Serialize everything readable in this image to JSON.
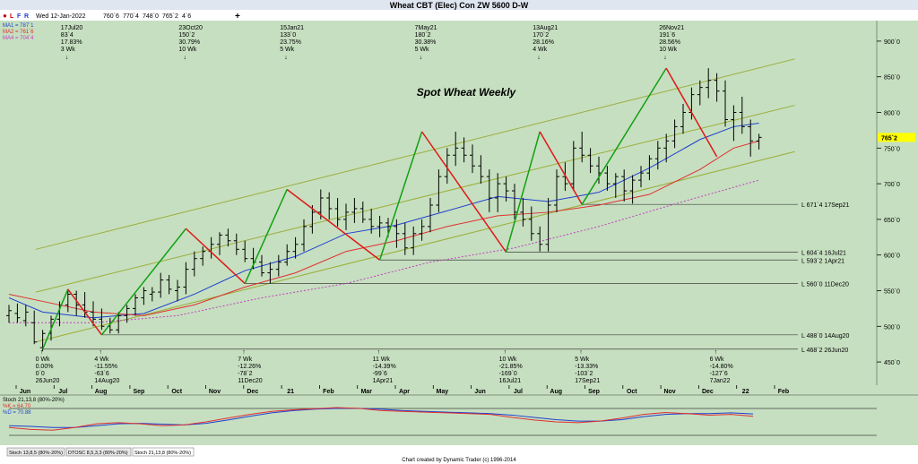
{
  "window_title": "Wheat CBT (Elec) Con ZW 5600 D-W",
  "toolbar": {
    "buttons": [
      "L",
      "F",
      "R"
    ],
    "date": "Wed 12-Jan-2022",
    "ohlc": [
      "760`6",
      "770`4",
      "748`0",
      "765`2",
      "4`6"
    ],
    "plus": "+"
  },
  "ma_legend": [
    {
      "label": "MA1 = 787`1",
      "color": "#1f3fd0"
    },
    {
      "label": "MA2 = 761`6",
      "color": "#e03030"
    },
    {
      "label": "MA4 = 704`4",
      "color": "#c040c0"
    }
  ],
  "colors": {
    "panel_bg": "#c6dfc0",
    "up_leg": "#12a012",
    "down_leg": "#e01818",
    "channel": "#9aae3a",
    "ma1": "#1f3fd0",
    "ma2": "#e03030",
    "ma4": "#c040c0",
    "price_tag_bg": "#ffff00"
  },
  "chart_data": {
    "type": "ohlc",
    "title": "Spot Wheat Weekly",
    "ylim": [
      430,
      920
    ],
    "yticks": [
      "900`0",
      "850`0",
      "800`0",
      "750`0",
      "700`0",
      "650`0",
      "600`0",
      "550`0",
      "500`0",
      "450`0"
    ],
    "ytick_values": [
      900,
      850,
      800,
      750,
      700,
      650,
      600,
      550,
      500,
      450
    ],
    "x_months": [
      "Jun",
      "Jul",
      "Aug",
      "Sep",
      "Oct",
      "Nov",
      "Dec",
      "21",
      "Feb",
      "Mar",
      "Apr",
      "May",
      "Jun",
      "Jul",
      "Aug",
      "Sep",
      "Oct",
      "Nov",
      "Dec",
      "22",
      "Feb"
    ],
    "last_price": "765`2",
    "bars": [
      [
        0,
        515,
        530,
        505,
        522
      ],
      [
        1,
        518,
        532,
        505,
        512
      ],
      [
        2,
        508,
        530,
        500,
        520
      ],
      [
        3,
        505,
        522,
        475,
        478
      ],
      [
        4,
        470,
        495,
        465,
        490
      ],
      [
        5,
        490,
        515,
        480,
        510
      ],
      [
        6,
        510,
        535,
        500,
        530
      ],
      [
        7,
        530,
        552,
        520,
        545
      ],
      [
        8,
        545,
        550,
        515,
        530
      ],
      [
        9,
        530,
        548,
        512,
        520
      ],
      [
        10,
        520,
        535,
        500,
        510
      ],
      [
        11,
        510,
        525,
        495,
        500
      ],
      [
        12,
        500,
        512,
        490,
        495
      ],
      [
        13,
        495,
        520,
        490,
        515
      ],
      [
        14,
        515,
        530,
        505,
        525
      ],
      [
        15,
        525,
        545,
        515,
        540
      ],
      [
        16,
        540,
        555,
        530,
        550
      ],
      [
        17,
        545,
        555,
        535,
        548
      ],
      [
        18,
        548,
        575,
        540,
        565
      ],
      [
        19,
        565,
        572,
        545,
        552
      ],
      [
        20,
        550,
        565,
        535,
        555
      ],
      [
        21,
        555,
        590,
        545,
        580
      ],
      [
        22,
        580,
        605,
        570,
        595
      ],
      [
        23,
        595,
        612,
        585,
        605
      ],
      [
        24,
        605,
        625,
        595,
        615
      ],
      [
        25,
        615,
        632,
        600,
        628
      ],
      [
        26,
        628,
        637,
        612,
        620
      ],
      [
        27,
        620,
        630,
        600,
        608
      ],
      [
        28,
        608,
        620,
        590,
        595
      ],
      [
        29,
        595,
        610,
        580,
        590
      ],
      [
        30,
        590,
        600,
        570,
        575
      ],
      [
        31,
        575,
        590,
        560,
        580
      ],
      [
        32,
        580,
        600,
        570,
        590
      ],
      [
        33,
        590,
        615,
        585,
        605
      ],
      [
        34,
        605,
        625,
        595,
        615
      ],
      [
        35,
        615,
        650,
        605,
        640
      ],
      [
        36,
        640,
        670,
        630,
        660
      ],
      [
        37,
        660,
        692,
        650,
        680
      ],
      [
        38,
        680,
        688,
        650,
        665
      ],
      [
        39,
        665,
        680,
        640,
        650
      ],
      [
        40,
        650,
        672,
        635,
        660
      ],
      [
        41,
        660,
        680,
        645,
        665
      ],
      [
        42,
        665,
        675,
        645,
        650
      ],
      [
        43,
        650,
        665,
        630,
        640
      ],
      [
        44,
        640,
        655,
        625,
        645
      ],
      [
        45,
        645,
        652,
        625,
        640
      ],
      [
        46,
        640,
        650,
        610,
        630
      ],
      [
        47,
        630,
        645,
        600,
        610
      ],
      [
        48,
        610,
        640,
        600,
        630
      ],
      [
        49,
        630,
        650,
        620,
        640
      ],
      [
        50,
        640,
        680,
        632,
        670
      ],
      [
        51,
        670,
        720,
        660,
        710
      ],
      [
        52,
        710,
        750,
        700,
        740
      ],
      [
        53,
        740,
        773,
        725,
        750
      ],
      [
        54,
        750,
        765,
        730,
        740
      ],
      [
        55,
        740,
        755,
        715,
        725
      ],
      [
        56,
        725,
        740,
        700,
        710
      ],
      [
        57,
        710,
        720,
        660,
        680
      ],
      [
        58,
        680,
        715,
        660,
        700
      ],
      [
        59,
        700,
        710,
        675,
        690
      ],
      [
        60,
        690,
        700,
        650,
        660
      ],
      [
        61,
        660,
        680,
        640,
        650
      ],
      [
        62,
        650,
        668,
        620,
        630
      ],
      [
        63,
        630,
        640,
        605,
        615
      ],
      [
        64,
        615,
        680,
        605,
        670
      ],
      [
        65,
        670,
        720,
        660,
        710
      ],
      [
        66,
        710,
        730,
        690,
        700
      ],
      [
        67,
        700,
        760,
        690,
        750
      ],
      [
        68,
        750,
        773,
        730,
        740
      ],
      [
        69,
        740,
        750,
        715,
        725
      ],
      [
        70,
        725,
        738,
        700,
        715
      ],
      [
        71,
        715,
        725,
        690,
        700
      ],
      [
        72,
        700,
        715,
        680,
        710
      ],
      [
        73,
        710,
        720,
        675,
        690
      ],
      [
        74,
        690,
        712,
        672,
        705
      ],
      [
        75,
        705,
        725,
        695,
        715
      ],
      [
        76,
        715,
        740,
        705,
        735
      ],
      [
        77,
        735,
        760,
        720,
        750
      ],
      [
        78,
        750,
        770,
        730,
        760
      ],
      [
        79,
        760,
        790,
        750,
        780
      ],
      [
        80,
        780,
        812,
        770,
        800
      ],
      [
        81,
        800,
        835,
        790,
        825
      ],
      [
        82,
        825,
        845,
        810,
        835
      ],
      [
        83,
        835,
        862,
        820,
        845
      ],
      [
        84,
        845,
        855,
        815,
        830
      ],
      [
        85,
        830,
        845,
        780,
        790
      ],
      [
        86,
        790,
        810,
        760,
        800
      ],
      [
        87,
        800,
        822,
        770,
        780
      ],
      [
        88,
        780,
        790,
        738,
        760
      ],
      [
        89,
        760,
        770,
        748,
        765
      ]
    ],
    "swings": [
      {
        "type": "low",
        "bar": 4,
        "price": 468,
        "lines": [
          "0 Wk",
          "0.00%",
          "0`0",
          "26Jun20"
        ]
      },
      {
        "type": "high",
        "bar": 7,
        "price": 552,
        "lines": [
          "17Jul20",
          "83`4",
          "17.83%",
          "3 Wk"
        ]
      },
      {
        "type": "low",
        "bar": 11,
        "price": 488,
        "lines": [
          "4 Wk",
          "-11.55%",
          "-63`6",
          "14Aug20"
        ]
      },
      {
        "type": "high",
        "bar": 21,
        "price": 637,
        "lines": [
          "23Oct20",
          "150`2",
          "30.79%",
          "10 Wk"
        ]
      },
      {
        "type": "low",
        "bar": 28,
        "price": 560,
        "lines": [
          "7 Wk",
          "-12.26%",
          "-78`2",
          "11Dec20"
        ]
      },
      {
        "type": "high",
        "bar": 33,
        "price": 692,
        "lines": [
          "15Jan21",
          "133`0",
          "23.75%",
          "5 Wk"
        ]
      },
      {
        "type": "low",
        "bar": 44,
        "price": 593,
        "lines": [
          "11 Wk",
          "-14.39%",
          "-99`6",
          "1Apr21"
        ]
      },
      {
        "type": "high",
        "bar": 49,
        "price": 773,
        "lines": [
          "7May21",
          "180`2",
          "30.38%",
          "5 Wk"
        ]
      },
      {
        "type": "low",
        "bar": 59,
        "price": 604,
        "lines": [
          "10 Wk",
          "-21.85%",
          "-169`0",
          "16Jul21"
        ]
      },
      {
        "type": "high",
        "bar": 63,
        "price": 773,
        "lines": [
          "13Aug21",
          "170`2",
          "28.16%",
          "4 Wk"
        ]
      },
      {
        "type": "low",
        "bar": 68,
        "price": 671,
        "lines": [
          "5 Wk",
          "-13.33%",
          "-103`2",
          "17Sep21"
        ]
      },
      {
        "type": "high",
        "bar": 78,
        "price": 862,
        "lines": [
          "26Nov21",
          "191`6",
          "28.56%",
          "10 Wk"
        ]
      },
      {
        "type": "low",
        "bar": 84,
        "price": 738,
        "lines": [
          "6 Wk",
          "-14.80%",
          "-127`6",
          "7Jan22"
        ]
      }
    ],
    "levels": [
      {
        "price": 671,
        "label": "L 671`4 17Sep21"
      },
      {
        "price": 604,
        "label": "L 604`4 16Jul21"
      },
      {
        "price": 593,
        "label": "L 593`2 1Apr21"
      },
      {
        "price": 560,
        "label": "L 560`0 11Dec20"
      },
      {
        "price": 488,
        "label": "L 488`0 14Aug20"
      },
      {
        "price": 468,
        "label": "L 468`2 26Jun20"
      }
    ],
    "channel": [
      {
        "from": [
          0,
          590
        ],
        "to": [
          89,
          875
        ]
      },
      {
        "from": [
          0,
          530
        ],
        "to": [
          89,
          810
        ]
      },
      {
        "from": [
          0,
          460
        ],
        "to": [
          89,
          745
        ]
      }
    ],
    "moving_averages": [
      {
        "name": "MA1",
        "values": [
          [
            0,
            540
          ],
          [
            4,
            520
          ],
          [
            10,
            512
          ],
          [
            16,
            518
          ],
          [
            22,
            545
          ],
          [
            28,
            578
          ],
          [
            34,
            598
          ],
          [
            40,
            630
          ],
          [
            46,
            642
          ],
          [
            52,
            662
          ],
          [
            58,
            682
          ],
          [
            64,
            675
          ],
          [
            70,
            688
          ],
          [
            76,
            722
          ],
          [
            82,
            762
          ],
          [
            86,
            780
          ],
          [
            89,
            785
          ]
        ]
      },
      {
        "name": "MA2",
        "values": [
          [
            0,
            545
          ],
          [
            4,
            535
          ],
          [
            10,
            520
          ],
          [
            16,
            515
          ],
          [
            22,
            530
          ],
          [
            28,
            555
          ],
          [
            34,
            575
          ],
          [
            40,
            605
          ],
          [
            46,
            620
          ],
          [
            52,
            640
          ],
          [
            58,
            655
          ],
          [
            64,
            660
          ],
          [
            70,
            670
          ],
          [
            76,
            685
          ],
          [
            82,
            720
          ],
          [
            86,
            750
          ],
          [
            89,
            760
          ]
        ]
      },
      {
        "name": "MA4",
        "values": [
          [
            0,
            505
          ],
          [
            10,
            505
          ],
          [
            20,
            515
          ],
          [
            30,
            540
          ],
          [
            40,
            560
          ],
          [
            50,
            590
          ],
          [
            60,
            610
          ],
          [
            70,
            640
          ],
          [
            80,
            675
          ],
          [
            89,
            705
          ]
        ]
      }
    ]
  },
  "stoch": {
    "title": "Stoch 21,13,8 (80%-20%)",
    "k_label": "%K = 64.70",
    "d_label": "%D = 70.88",
    "k_color": "#e03030",
    "d_color": "#1f3fd0",
    "ylim": [
      0,
      100
    ],
    "k": [
      35,
      30,
      28,
      35,
      45,
      48,
      45,
      40,
      42,
      50,
      60,
      70,
      78,
      82,
      85,
      88,
      86,
      80,
      78,
      76,
      74,
      72,
      70,
      62,
      55,
      50,
      48,
      52,
      60,
      70,
      75,
      72,
      68,
      70,
      65
    ],
    "d": [
      40,
      38,
      35,
      35,
      40,
      45,
      46,
      44,
      42,
      46,
      55,
      65,
      74,
      80,
      84,
      86,
      86,
      84,
      80,
      78,
      76,
      74,
      72,
      68,
      62,
      56,
      52,
      52,
      56,
      64,
      70,
      72,
      72,
      74,
      71
    ]
  },
  "bottom_tabs": [
    "Stoch 13,8,5 (80%-20%)",
    "DTOSC 8,5,3,3 (80%-20%)",
    "Stoch 21,13,8 (80%-20%)"
  ],
  "footer": "Chart created by Dynamic Trader  (c) 1996-2014"
}
